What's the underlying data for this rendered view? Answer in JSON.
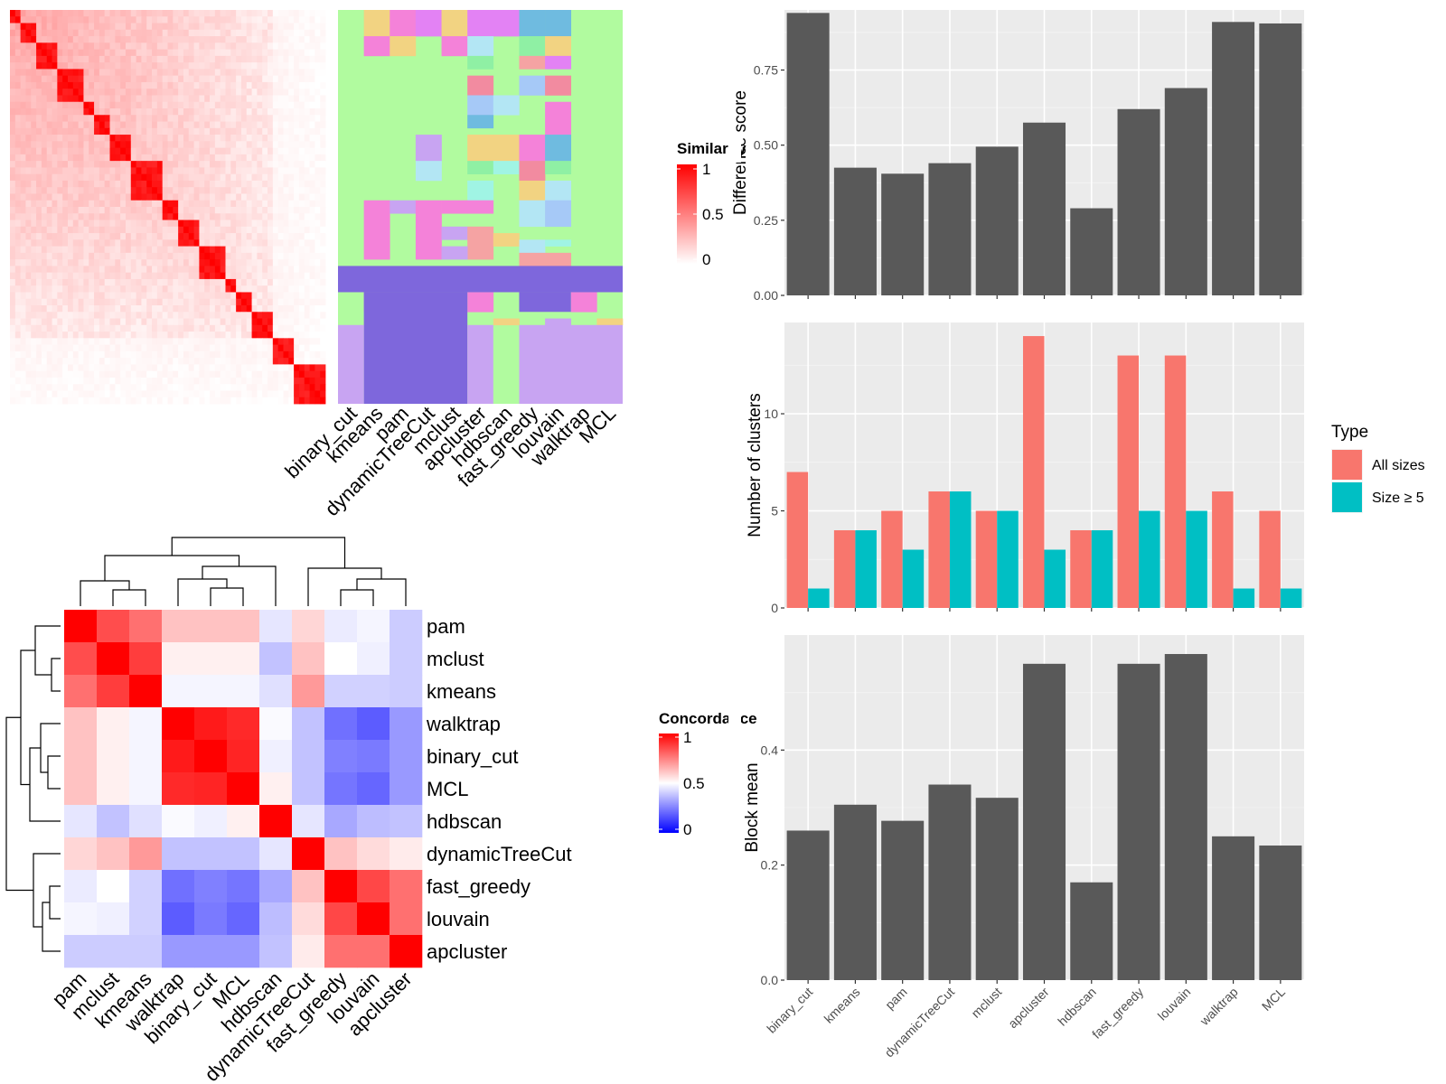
{
  "chart_data": [
    {
      "type": "heatmap",
      "panel": "similarity-heatmap",
      "legend": {
        "title": "Similarity",
        "ticks": [
          "0",
          "0.5",
          "1"
        ],
        "low_color": "#ffffff",
        "high_color": "#ff0000"
      },
      "row_column_count": 60,
      "block_sizes": [
        2,
        3,
        4,
        5,
        2,
        3,
        4,
        6,
        3,
        4,
        5,
        2,
        3,
        4,
        4,
        6
      ]
    },
    {
      "type": "heatmap",
      "panel": "cluster-membership",
      "columns": [
        "binary_cut",
        "kmeans",
        "pam",
        "dynamicTreeCut",
        "mclust",
        "apcluster",
        "hdbscan",
        "fast_greedy",
        "louvain",
        "walktrap",
        "MCL"
      ],
      "background_color": "#b1fb9f",
      "shared_cluster_color": "#7e67dc"
    },
    {
      "type": "heatmap",
      "panel": "concordance-heatmap",
      "legend": {
        "title": "Concordance",
        "ticks": [
          "0",
          "0.5",
          "1"
        ],
        "low_color": "#0000ff",
        "mid_color": "#ffffff",
        "high_color": "#ff0000"
      },
      "rows": [
        "pam",
        "mclust",
        "kmeans",
        "walktrap",
        "binary_cut",
        "MCL",
        "hdbscan",
        "dynamicTreeCut",
        "fast_greedy",
        "louvain",
        "apcluster"
      ],
      "columns": [
        "pam",
        "mclust",
        "kmeans",
        "walktrap",
        "binary_cut",
        "MCL",
        "hdbscan",
        "dynamicTreeCut",
        "fast_greedy",
        "louvain",
        "apcluster"
      ],
      "values": [
        [
          1.0,
          0.85,
          0.78,
          0.62,
          0.62,
          0.62,
          0.45,
          0.58,
          0.46,
          0.48,
          0.4
        ],
        [
          0.85,
          1.0,
          0.88,
          0.53,
          0.53,
          0.53,
          0.38,
          0.62,
          0.5,
          0.47,
          0.4
        ],
        [
          0.78,
          0.88,
          1.0,
          0.48,
          0.48,
          0.48,
          0.44,
          0.7,
          0.41,
          0.41,
          0.4
        ],
        [
          0.62,
          0.53,
          0.48,
          1.0,
          0.95,
          0.92,
          0.49,
          0.38,
          0.22,
          0.18,
          0.3
        ],
        [
          0.62,
          0.53,
          0.48,
          0.95,
          1.0,
          0.93,
          0.47,
          0.38,
          0.25,
          0.24,
          0.3
        ],
        [
          0.62,
          0.53,
          0.48,
          0.92,
          0.93,
          1.0,
          0.53,
          0.38,
          0.23,
          0.2,
          0.3
        ],
        [
          0.45,
          0.38,
          0.44,
          0.49,
          0.47,
          0.53,
          1.0,
          0.45,
          0.33,
          0.37,
          0.38
        ],
        [
          0.58,
          0.62,
          0.7,
          0.38,
          0.38,
          0.38,
          0.45,
          1.0,
          0.62,
          0.57,
          0.54
        ],
        [
          0.46,
          0.5,
          0.41,
          0.22,
          0.25,
          0.23,
          0.33,
          0.62,
          1.0,
          0.86,
          0.78
        ],
        [
          0.48,
          0.47,
          0.41,
          0.18,
          0.24,
          0.2,
          0.37,
          0.57,
          0.86,
          1.0,
          0.78
        ],
        [
          0.4,
          0.4,
          0.4,
          0.3,
          0.3,
          0.3,
          0.38,
          0.54,
          0.78,
          0.78,
          1.0
        ]
      ]
    },
    {
      "type": "bar",
      "panel": "difference-score",
      "categories": [
        "binary_cut",
        "kmeans",
        "pam",
        "dynamicTreeCut",
        "mclust",
        "apcluster",
        "hdbscan",
        "fast_greedy",
        "louvain",
        "walktrap",
        "MCL"
      ],
      "values": [
        0.94,
        0.425,
        0.405,
        0.44,
        0.495,
        0.575,
        0.29,
        0.62,
        0.69,
        0.91,
        0.905
      ],
      "ylabel": "Difference score",
      "ylim": [
        0,
        0.95
      ],
      "yticks": [
        "0.00",
        "0.25",
        "0.50",
        "0.75"
      ],
      "bar_color": "#595959",
      "panel_background": "#ebebeb"
    },
    {
      "type": "bar",
      "panel": "number-of-clusters",
      "categories": [
        "binary_cut",
        "kmeans",
        "pam",
        "dynamicTreeCut",
        "mclust",
        "apcluster",
        "hdbscan",
        "fast_greedy",
        "louvain",
        "walktrap",
        "MCL"
      ],
      "series": [
        {
          "name": "All sizes",
          "color": "#f8766d",
          "values": [
            7,
            4,
            5,
            6,
            5,
            14,
            4,
            13,
            13,
            6,
            5
          ]
        },
        {
          "name": "Size ≥ 5",
          "color": "#00bfc4",
          "values": [
            1,
            4,
            3,
            6,
            5,
            3,
            4,
            5,
            5,
            1,
            1
          ]
        }
      ],
      "ylabel": "Number of clusters",
      "ylim": [
        0,
        14.7
      ],
      "yticks": [
        "0",
        "5",
        "10"
      ],
      "legend": {
        "title": "Type",
        "placement": "right"
      },
      "panel_background": "#ebebeb"
    },
    {
      "type": "bar",
      "panel": "block-mean",
      "categories": [
        "binary_cut",
        "kmeans",
        "pam",
        "dynamicTreeCut",
        "mclust",
        "apcluster",
        "hdbscan",
        "fast_greedy",
        "louvain",
        "walktrap",
        "MCL"
      ],
      "values": [
        0.26,
        0.305,
        0.277,
        0.34,
        0.317,
        0.55,
        0.17,
        0.55,
        0.567,
        0.25,
        0.234
      ],
      "ylabel": "Block mean",
      "ylim": [
        0,
        0.6
      ],
      "yticks": [
        "0.0",
        "0.2",
        "0.4"
      ],
      "bar_color": "#595959",
      "panel_background": "#ebebeb"
    }
  ]
}
